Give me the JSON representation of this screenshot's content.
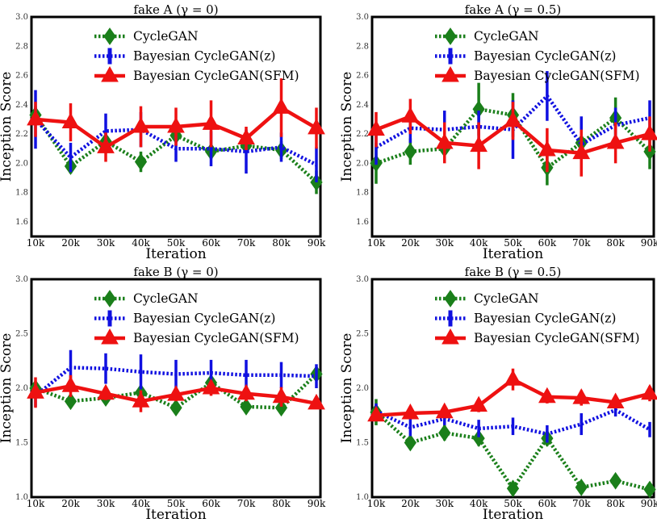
{
  "colors": {
    "cyclegan": "#1a7f1a",
    "bayes_z": "#1010e0",
    "bayes_sfm": "#ee1111"
  },
  "chart_data": [
    {
      "type": "line",
      "title": "fake A",
      "title_math": "(γ = 0)",
      "xlabel": "Iteration",
      "ylabel": "Inception Score",
      "categories": [
        "10k",
        "20k",
        "30k",
        "40k",
        "50k",
        "60k",
        "70k",
        "80k",
        "90k"
      ],
      "ylim": [
        1.5,
        3.0
      ],
      "yticks": [
        "1.6",
        "1.8",
        "2.0",
        "2.2",
        "2.4",
        "2.6",
        "2.8",
        "3.0"
      ],
      "legend_position": "top-center",
      "series": [
        {
          "name": "CycleGAN",
          "style": "dotted-diamond",
          "values": [
            2.33,
            1.98,
            2.15,
            2.01,
            2.19,
            2.08,
            2.12,
            2.09,
            1.87
          ],
          "errors": [
            0.06,
            0.05,
            0.05,
            0.07,
            0.05,
            0.05,
            0.04,
            0.06,
            0.08
          ]
        },
        {
          "name": "Bayesian CycleGAN(z)",
          "style": "dotted-bar",
          "values": [
            2.3,
            2.04,
            2.22,
            2.23,
            2.1,
            2.1,
            2.08,
            2.11,
            1.99
          ],
          "errors": [
            0.2,
            0.1,
            0.12,
            0.12,
            0.09,
            0.12,
            0.15,
            0.1,
            0.12
          ]
        },
        {
          "name": "Bayesian CycleGAN(SFM)",
          "style": "solid-triangle",
          "values": [
            2.3,
            2.28,
            2.11,
            2.25,
            2.25,
            2.27,
            2.17,
            2.38,
            2.24
          ],
          "errors": [
            0.12,
            0.13,
            0.1,
            0.14,
            0.13,
            0.16,
            0.08,
            0.2,
            0.14
          ]
        }
      ]
    },
    {
      "type": "line",
      "title": "fake A",
      "title_math": "(γ = 0.5)",
      "xlabel": "Iteration",
      "ylabel": "Inception Score",
      "categories": [
        "10k",
        "20k",
        "30k",
        "40k",
        "50k",
        "60k",
        "70k",
        "80k",
        "90k"
      ],
      "ylim": [
        1.5,
        3.0
      ],
      "yticks": [
        "1.6",
        "1.8",
        "2.0",
        "2.2",
        "2.4",
        "2.6",
        "2.8",
        "3.0"
      ],
      "legend_position": "top-center",
      "series": [
        {
          "name": "CycleGAN",
          "style": "dotted-diamond",
          "values": [
            2.0,
            2.08,
            2.1,
            2.37,
            2.33,
            1.97,
            2.14,
            2.31,
            2.08
          ],
          "errors": [
            0.14,
            0.09,
            0.07,
            0.18,
            0.15,
            0.12,
            0.1,
            0.14,
            0.12
          ]
        },
        {
          "name": "Bayesian CycleGAN(z)",
          "style": "dotted-bar",
          "values": [
            2.11,
            2.24,
            2.23,
            2.25,
            2.23,
            2.46,
            2.13,
            2.26,
            2.31
          ],
          "errors": [
            0.12,
            0.1,
            0.13,
            0.11,
            0.2,
            0.17,
            0.19,
            0.12,
            0.12
          ]
        },
        {
          "name": "Bayesian CycleGAN(SFM)",
          "style": "solid-triangle",
          "values": [
            2.23,
            2.32,
            2.14,
            2.12,
            2.29,
            2.09,
            2.07,
            2.14,
            2.2
          ],
          "errors": [
            0.12,
            0.12,
            0.14,
            0.16,
            0.13,
            0.15,
            0.16,
            0.14,
            0.12
          ]
        }
      ]
    },
    {
      "type": "line",
      "title": "fake B",
      "title_math": "(γ = 0)",
      "xlabel": "Iteration",
      "ylabel": "Inception Score",
      "categories": [
        "10k",
        "20k",
        "30k",
        "40k",
        "50k",
        "60k",
        "70k",
        "80k",
        "90k"
      ],
      "ylim": [
        1.0,
        3.0
      ],
      "yticks": [
        "1.0",
        "1.5",
        "2.0",
        "2.5",
        "3.0"
      ],
      "legend_position": "top-center",
      "series": [
        {
          "name": "CycleGAN",
          "style": "dotted-diamond",
          "values": [
            2.0,
            1.88,
            1.91,
            1.96,
            1.82,
            2.05,
            1.83,
            1.82,
            2.13
          ],
          "errors": [
            0.05,
            0.06,
            0.06,
            0.06,
            0.05,
            0.06,
            0.06,
            0.06,
            0.05
          ]
        },
        {
          "name": "Bayesian CycleGAN(z)",
          "style": "dotted-bar",
          "values": [
            1.93,
            2.19,
            2.18,
            2.15,
            2.13,
            2.14,
            2.12,
            2.12,
            2.11
          ],
          "errors": [
            0.1,
            0.16,
            0.14,
            0.16,
            0.13,
            0.12,
            0.14,
            0.12,
            0.11
          ]
        },
        {
          "name": "Bayesian CycleGAN(SFM)",
          "style": "solid-triangle",
          "values": [
            1.96,
            2.02,
            1.95,
            1.88,
            1.94,
            2.0,
            1.95,
            1.92,
            1.86
          ],
          "errors": [
            0.14,
            0.1,
            0.06,
            0.1,
            0.06,
            0.07,
            0.07,
            0.09,
            0.04
          ]
        }
      ]
    },
    {
      "type": "line",
      "title": "fake B",
      "title_math": "(γ = 0.5)",
      "xlabel": "Iteration",
      "ylabel": "Inception Score",
      "categories": [
        "10k",
        "20k",
        "30k",
        "40k",
        "50k",
        "60k",
        "70k",
        "80k",
        "90k"
      ],
      "ylim": [
        1.0,
        3.0
      ],
      "yticks": [
        "1.0",
        "1.5",
        "2.0",
        "2.5",
        "3.0"
      ],
      "legend_position": "top-center",
      "series": [
        {
          "name": "CycleGAN",
          "style": "dotted-diamond",
          "values": [
            1.78,
            1.5,
            1.59,
            1.54,
            1.08,
            1.54,
            1.09,
            1.15,
            1.07
          ],
          "errors": [
            0.12,
            0.06,
            0.07,
            0.07,
            0.06,
            0.07,
            0.06,
            0.06,
            0.05
          ]
        },
        {
          "name": "Bayesian CycleGAN(z)",
          "style": "dotted-bar",
          "values": [
            1.79,
            1.64,
            1.72,
            1.63,
            1.65,
            1.58,
            1.67,
            1.8,
            1.62
          ],
          "errors": [
            0.07,
            0.08,
            0.06,
            0.08,
            0.08,
            0.08,
            0.1,
            0.06,
            0.07
          ]
        },
        {
          "name": "Bayesian CycleGAN(SFM)",
          "style": "solid-triangle",
          "values": [
            1.75,
            1.77,
            1.78,
            1.84,
            2.08,
            1.92,
            1.91,
            1.87,
            1.95
          ],
          "errors": [
            0.05,
            0.05,
            0.05,
            0.06,
            0.1,
            0.06,
            0.07,
            0.05,
            0.07
          ]
        }
      ]
    }
  ]
}
